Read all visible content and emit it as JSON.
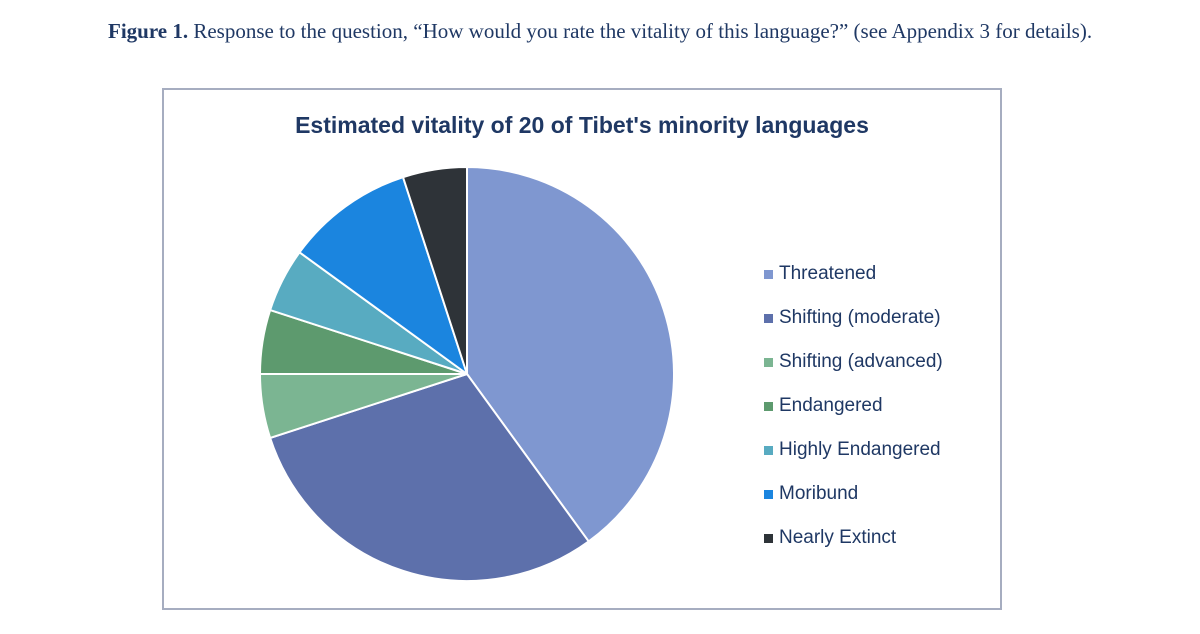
{
  "caption": {
    "label": "Figure 1.",
    "text": " Response to the question, “How would you rate the vitality of this language?” (see Appendix 3 for details)."
  },
  "chart_data": {
    "type": "pie",
    "title": "Estimated vitality of 20 of Tibet's minority languages",
    "legend_position": "right",
    "categories": [
      "Threatened",
      "Shifting (moderate)",
      "Shifting (advanced)",
      "Endangered",
      "Highly Endangered",
      "Moribund",
      "Nearly Extinct"
    ],
    "values": [
      8,
      6,
      1,
      1,
      1,
      2,
      1
    ],
    "colors": [
      "#7f97d0",
      "#5d70ab",
      "#7bb592",
      "#5d9a6e",
      "#58abc1",
      "#1b85df",
      "#2e3338"
    ]
  }
}
